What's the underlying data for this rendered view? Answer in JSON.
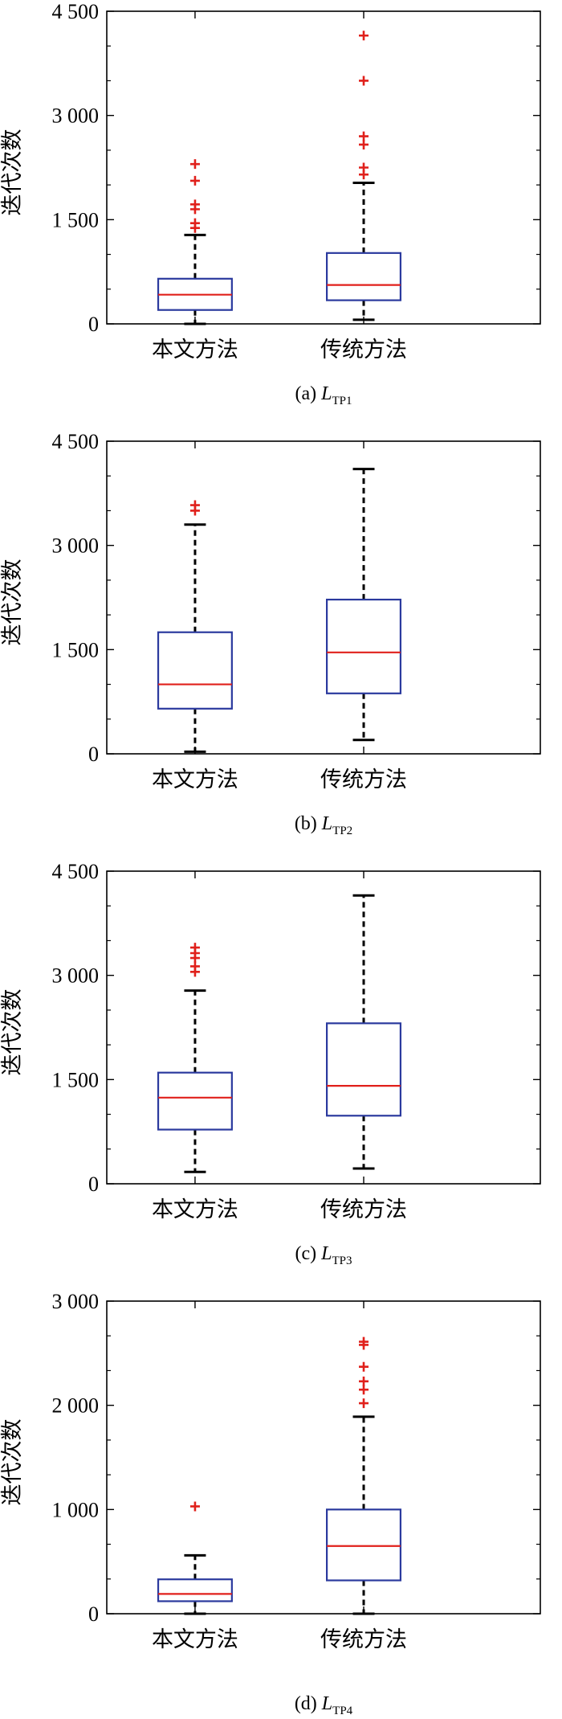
{
  "chart_data": [
    {
      "type": "box",
      "caption_prefix": "(a)",
      "caption_var": "L",
      "caption_sub": "TP1",
      "ylabel": "迭代次数",
      "ylim": [
        0,
        4500
      ],
      "yticks": [
        0,
        1500,
        3000,
        4500
      ],
      "ytick_labels": [
        "0",
        "1 500",
        "3 000",
        "4 500"
      ],
      "categories": [
        "本文方法",
        "传统方法"
      ],
      "boxes": [
        {
          "whisker_low": 0,
          "q1": 200,
          "median": 420,
          "q3": 650,
          "whisker_high": 1280,
          "outliers": [
            1380,
            1450,
            1650,
            1720,
            2060,
            2300
          ]
        },
        {
          "whisker_low": 60,
          "q1": 340,
          "median": 560,
          "q3": 1020,
          "whisker_high": 2030,
          "outliers": [
            2150,
            2250,
            2580,
            2700,
            3500,
            4150
          ]
        }
      ]
    },
    {
      "type": "box",
      "caption_prefix": "(b)",
      "caption_var": "L",
      "caption_sub": "TP2",
      "ylabel": "迭代次数",
      "ylim": [
        0,
        4500
      ],
      "yticks": [
        0,
        1500,
        3000,
        4500
      ],
      "ytick_labels": [
        "0",
        "1 500",
        "3 000",
        "4 500"
      ],
      "categories": [
        "本文方法",
        "传统方法"
      ],
      "boxes": [
        {
          "whisker_low": 30,
          "q1": 650,
          "median": 1000,
          "q3": 1750,
          "whisker_high": 3300,
          "outliers": [
            3500,
            3580
          ]
        },
        {
          "whisker_low": 200,
          "q1": 870,
          "median": 1460,
          "q3": 2220,
          "whisker_high": 4100,
          "outliers": []
        }
      ]
    },
    {
      "type": "box",
      "caption_prefix": "(c)",
      "caption_var": "L",
      "caption_sub": "TP3",
      "ylabel": "迭代次数",
      "ylim": [
        0,
        4500
      ],
      "yticks": [
        0,
        1500,
        3000,
        4500
      ],
      "ytick_labels": [
        "0",
        "1 500",
        "3 000",
        "4 500"
      ],
      "categories": [
        "本文方法",
        "传统方法"
      ],
      "boxes": [
        {
          "whisker_low": 170,
          "q1": 780,
          "median": 1240,
          "q3": 1600,
          "whisker_high": 2780,
          "outliers": [
            3050,
            3130,
            3250,
            3320,
            3400
          ]
        },
        {
          "whisker_low": 220,
          "q1": 980,
          "median": 1410,
          "q3": 2310,
          "whisker_high": 4150,
          "outliers": []
        }
      ]
    },
    {
      "type": "box",
      "caption_prefix": "(d)",
      "caption_var": "L",
      "caption_sub": "TP4",
      "ylabel": "迭代次数",
      "ylim": [
        0,
        3000
      ],
      "yticks": [
        0,
        1000,
        2000,
        3000
      ],
      "ytick_labels": [
        "0",
        "1 000",
        "2 000",
        "3 000"
      ],
      "categories": [
        "本文方法",
        "传统方法"
      ],
      "boxes": [
        {
          "whisker_low": 0,
          "q1": 120,
          "median": 190,
          "q3": 330,
          "whisker_high": 560,
          "outliers": [
            1030
          ]
        },
        {
          "whisker_low": 0,
          "q1": 320,
          "median": 650,
          "q3": 1000,
          "whisker_high": 1890,
          "outliers": [
            2020,
            2150,
            2230,
            2370,
            2580,
            2610
          ]
        }
      ]
    }
  ]
}
